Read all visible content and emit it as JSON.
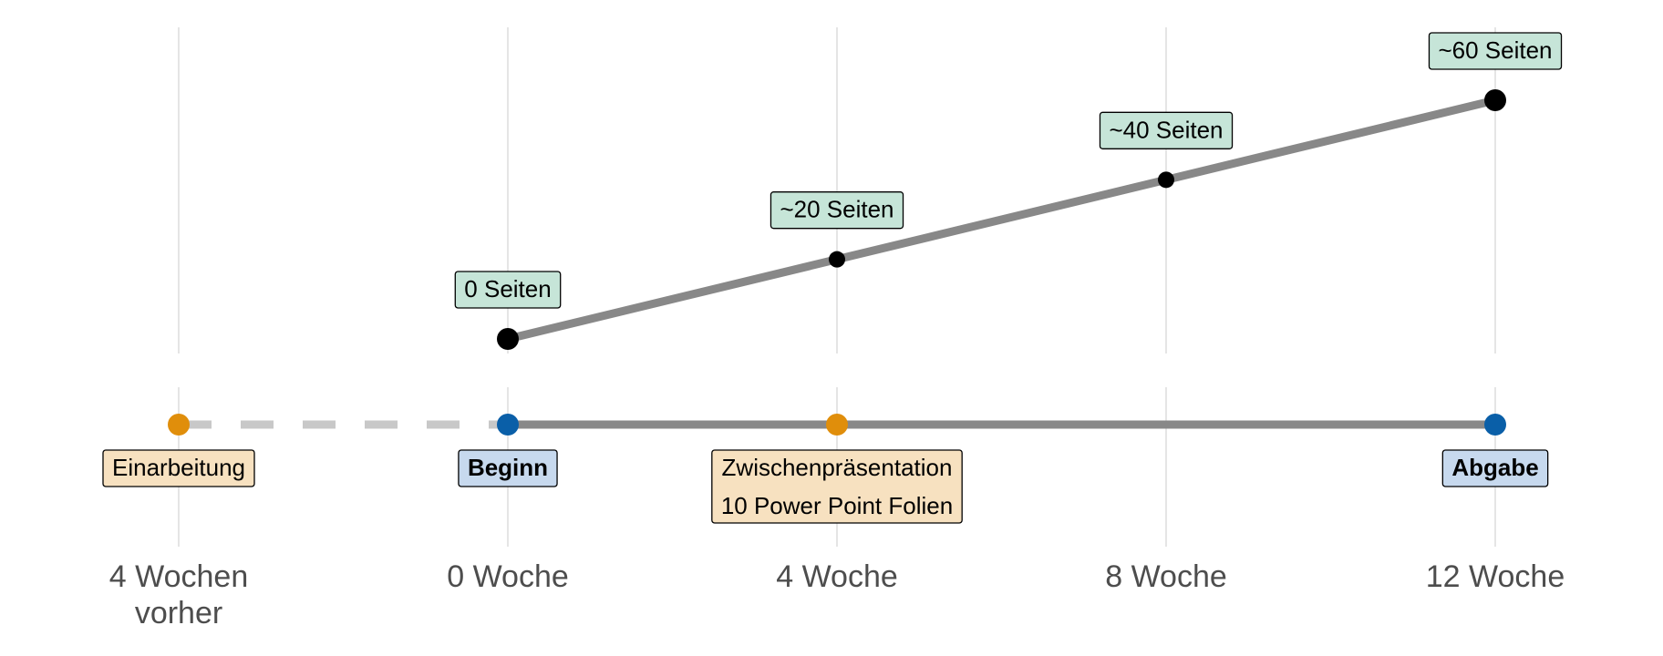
{
  "chart_data": {
    "type": "line",
    "x": [
      "4 Wochen vorher",
      "0 Woche",
      "4 Woche",
      "8 Woche",
      "12 Woche"
    ],
    "x_values": [
      -4,
      0,
      4,
      8,
      12
    ],
    "xlim": [
      -4,
      12
    ],
    "grid": "vertical",
    "legend": "none",
    "progress_series": {
      "points": [
        {
          "week": 0,
          "pages": 0,
          "label": "0 Seiten",
          "size": "large"
        },
        {
          "week": 4,
          "pages": 20,
          "label": "~20 Seiten",
          "size": "small"
        },
        {
          "week": 8,
          "pages": 40,
          "label": "~40 Seiten",
          "size": "small"
        },
        {
          "week": 12,
          "pages": 60,
          "label": "~60 Seiten",
          "size": "large"
        }
      ],
      "line_color": "#888888",
      "label_fill": "#c6e5d8"
    },
    "timeline": {
      "events": [
        {
          "week": -4,
          "lines": [
            "Einarbeitung"
          ],
          "bold": false,
          "dot_color": "#e08e0b",
          "label_fill": "#f7e1c0"
        },
        {
          "week": 0,
          "lines": [
            "Beginn"
          ],
          "bold": true,
          "dot_color": "#0a5fa8",
          "label_fill": "#c7d9ee"
        },
        {
          "week": 4,
          "lines": [
            "Zwischenpräsentation",
            "10 Power Point Folien"
          ],
          "bold": false,
          "dot_color": "#e08e0b",
          "label_fill": "#f7e1c0"
        },
        {
          "week": 12,
          "lines": [
            "Abgabe"
          ],
          "bold": true,
          "dot_color": "#0a5fa8",
          "label_fill": "#c7d9ee"
        }
      ],
      "dashed_range": [
        -4,
        0
      ],
      "solid_range": [
        0,
        12
      ],
      "dashed_color": "#c8c8c8",
      "solid_color": "#888888"
    },
    "tick_labels": [
      {
        "week": -4,
        "lines": [
          "4 Wochen",
          "vorher"
        ]
      },
      {
        "week": 0,
        "lines": [
          "0 Woche"
        ]
      },
      {
        "week": 4,
        "lines": [
          "4 Woche"
        ]
      },
      {
        "week": 8,
        "lines": [
          "8 Woche"
        ]
      },
      {
        "week": 12,
        "lines": [
          "12 Woche"
        ]
      }
    ]
  }
}
